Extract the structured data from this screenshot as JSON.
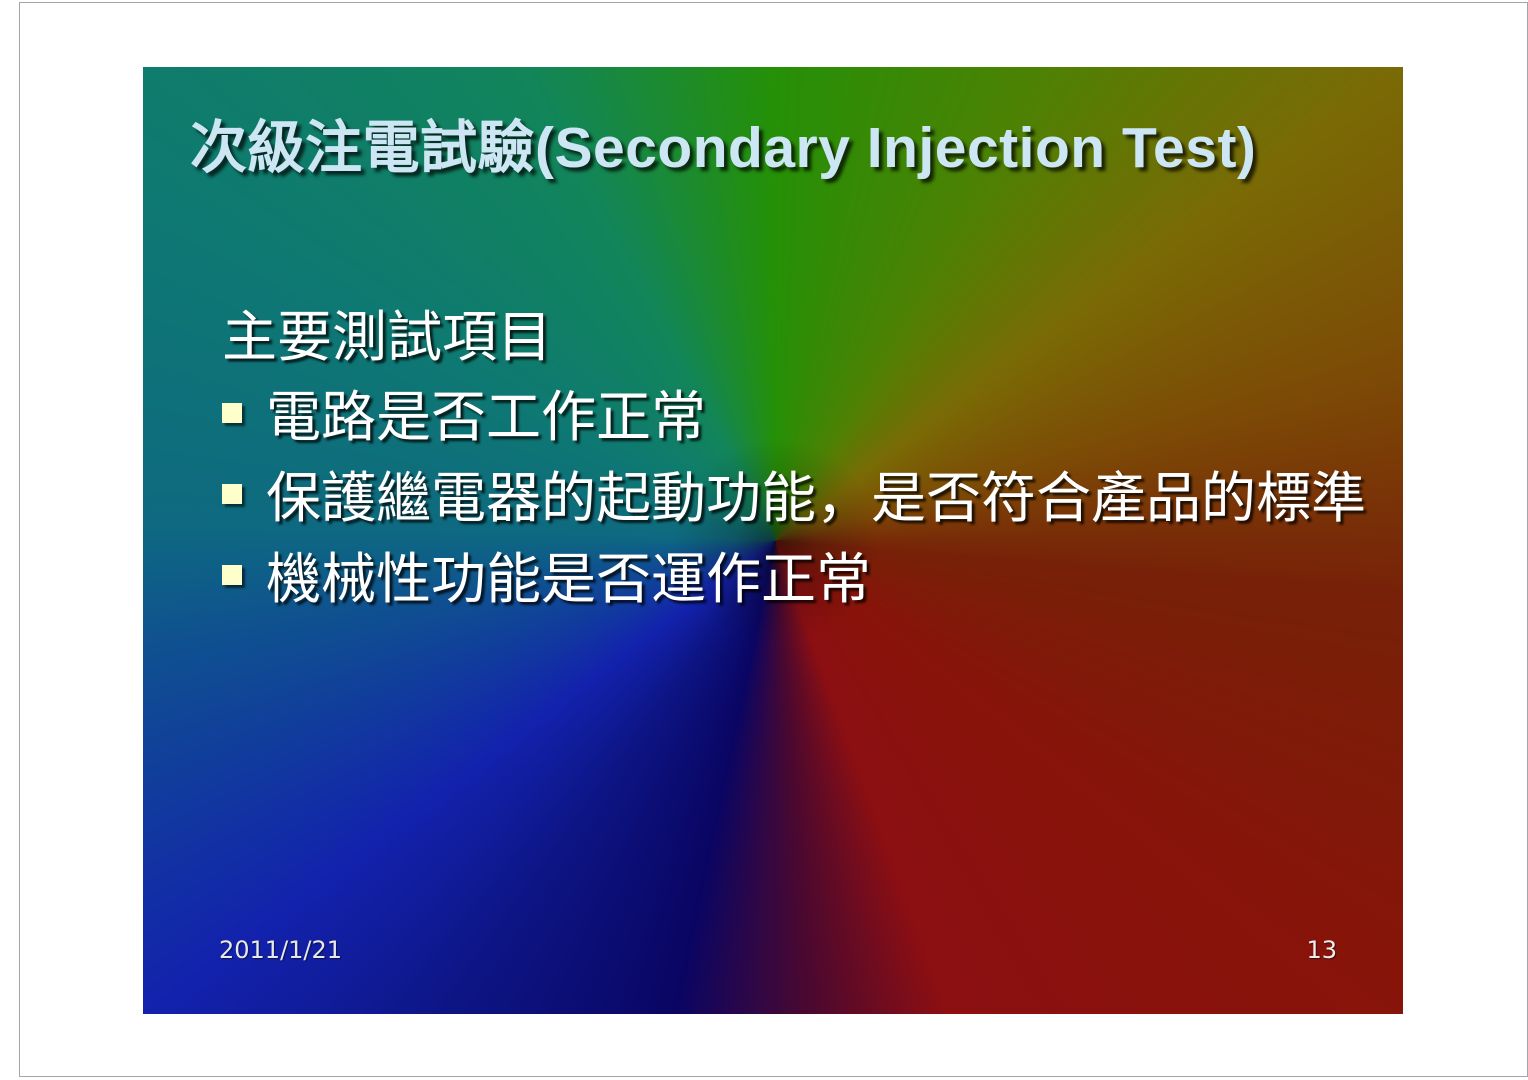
{
  "slide": {
    "title": "次級注電試驗(Secondary Injection Test)",
    "lead": "主要測試項目",
    "bullets": [
      "電路是否工作正常",
      "保護繼電器的起動功能，是否符合產品的標準",
      "機械性功能是否運作正常"
    ],
    "footer": {
      "date": "2011/1/21",
      "page_number": "13"
    }
  },
  "colors": {
    "title_text": "#cde6f3",
    "body_text": "#ffffff",
    "bullet_marker": "#ffffcc",
    "footer_text": "#e8e8e8",
    "page_background": "#ffffff",
    "page_border": "#a0a6ab",
    "bg_top_green": "#259006",
    "bg_topright_olive": "#7a6a05",
    "bg_right_rust": "#772108",
    "bg_bottomright_red": "#8c0f12",
    "bg_bottom_navy": "#0a0563",
    "bg_bottomleft_blue": "#1322ad",
    "bg_left_tealblue": "#0e6a80",
    "bg_topleft_teal": "#0e7a70"
  }
}
